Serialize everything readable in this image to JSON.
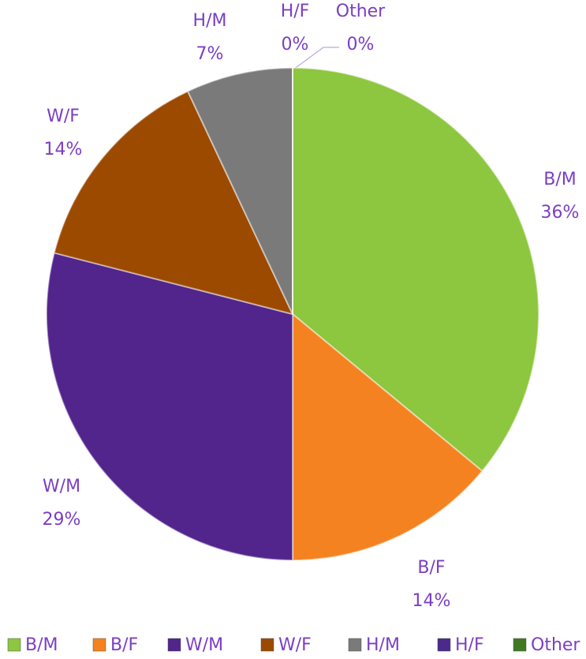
{
  "chart_data": {
    "type": "pie",
    "categories": [
      "B/M",
      "B/F",
      "W/M",
      "W/F",
      "H/M",
      "H/F",
      "Other"
    ],
    "values": [
      36,
      14,
      29,
      14,
      7,
      0,
      0
    ],
    "value_labels": [
      "36%",
      "14%",
      "29%",
      "14%",
      "7%",
      "0%",
      "0%"
    ],
    "colors": [
      "#8dc63f",
      "#f58220",
      "#51258c",
      "#9c4a00",
      "#7a7a7a",
      "#4b2a8c",
      "#3f7a22"
    ],
    "legend": "bottom"
  }
}
